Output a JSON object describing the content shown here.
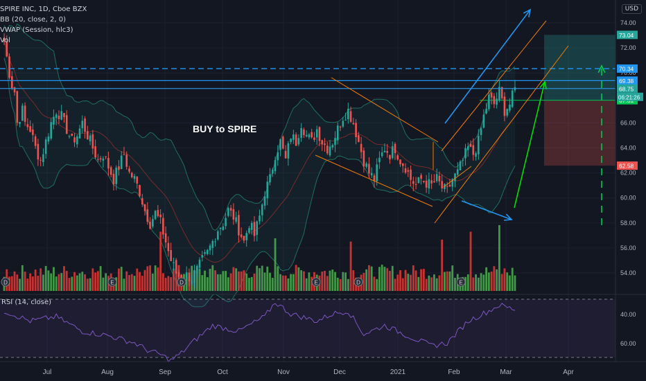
{
  "legend": {
    "symbol": "SPIRE INC, 1D, Cboe BZX",
    "bb": "BB (20, close, 2, 0)",
    "vwap": "VWAP (Session, hlc3)",
    "vol": "Vol"
  },
  "rsi_label": "RSI (14, close)",
  "currency": "USD",
  "annotation": "BUY to SPIRE",
  "countdown": "06:21:26",
  "colors": {
    "background": "#131722",
    "up": "#26a69a",
    "down": "#ef5350",
    "vol_up": "#4caf50",
    "vol_down": "#e53935",
    "bb": "#1e6f60",
    "basis": "#7a2a2a",
    "rsi": "#7e57c2",
    "blue_line": "#2196f3",
    "orange_channel": "#f57c00",
    "green_arrow": "#00e000"
  },
  "chart_data": {
    "type": "candlestick",
    "price_axis": {
      "min": 53,
      "max": 75,
      "ticks": [
        54,
        56,
        58,
        60,
        62,
        64,
        66,
        68,
        70,
        72,
        74
      ],
      "labels": [
        "54.00",
        "56.00",
        "58.00",
        "60.00",
        "62.00",
        "64.00",
        "66.00",
        "68.00",
        "70.00",
        "72.00",
        "74.00"
      ]
    },
    "time_axis": {
      "labels": [
        "Jul",
        "Aug",
        "Sep",
        "Oct",
        "Nov",
        "Dec",
        "2021",
        "Feb",
        "Mar",
        "Apr"
      ]
    },
    "price_labels": [
      {
        "value": 73.04,
        "text": "73.04",
        "color": "#26a69a"
      },
      {
        "value": 70.34,
        "text": "70.34",
        "color": "#2196f3"
      },
      {
        "value": 69.38,
        "text": "69.38",
        "color": "#2196f3"
      },
      {
        "value": 68.75,
        "text": "68.75",
        "color": "#26a69a"
      },
      {
        "value": 67.81,
        "text": "67.81",
        "color": "#00c853"
      },
      {
        "value": 62.58,
        "text": "62.58",
        "color": "#ef5350"
      }
    ],
    "horizontal_levels": [
      70.34,
      69.38,
      68.75
    ],
    "position_tool": {
      "target": 73.04,
      "entry": 67.81,
      "stop": 62.58
    },
    "close_path": [
      [
        0,
        72.5
      ],
      [
        2,
        70
      ],
      [
        3,
        69
      ],
      [
        4,
        68.5
      ],
      [
        5,
        66
      ],
      [
        7,
        67
      ],
      [
        8,
        66
      ],
      [
        10,
        65.5
      ],
      [
        12,
        64
      ],
      [
        14,
        63
      ],
      [
        16,
        64.5
      ],
      [
        18,
        66
      ],
      [
        20,
        67
      ],
      [
        22,
        66.5
      ],
      [
        24,
        65.5
      ],
      [
        26,
        64.5
      ],
      [
        28,
        65
      ],
      [
        30,
        66
      ],
      [
        32,
        65
      ],
      [
        34,
        64
      ],
      [
        36,
        63
      ],
      [
        38,
        63.5
      ],
      [
        40,
        62.5
      ],
      [
        42,
        61.5
      ],
      [
        44,
        62.5
      ],
      [
        46,
        63.5
      ],
      [
        48,
        62
      ],
      [
        50,
        61.5
      ],
      [
        52,
        60.5
      ],
      [
        54,
        59
      ],
      [
        56,
        58
      ],
      [
        58,
        58.8
      ],
      [
        60,
        58
      ],
      [
        62,
        56.5
      ],
      [
        64,
        55
      ],
      [
        66,
        54
      ],
      [
        68,
        53.5
      ],
      [
        70,
        53.8
      ],
      [
        72,
        53.6
      ],
      [
        74,
        54.2
      ],
      [
        76,
        55
      ],
      [
        78,
        55.6
      ],
      [
        80,
        56.5
      ],
      [
        82,
        57.5
      ],
      [
        84,
        58
      ],
      [
        86,
        59
      ],
      [
        88,
        58.5
      ],
      [
        90,
        57.5
      ],
      [
        92,
        56.5
      ],
      [
        94,
        58
      ],
      [
        96,
        57
      ],
      [
        98,
        58.5
      ],
      [
        100,
        60.5
      ],
      [
        102,
        61.5
      ],
      [
        104,
        63.5
      ],
      [
        106,
        64.5
      ],
      [
        108,
        63
      ],
      [
        110,
        65
      ],
      [
        112,
        64.5
      ],
      [
        114,
        66
      ],
      [
        116,
        65
      ],
      [
        118,
        64.5
      ],
      [
        120,
        65.5
      ],
      [
        122,
        64.5
      ],
      [
        124,
        64
      ],
      [
        126,
        64.5
      ],
      [
        128,
        65.5
      ],
      [
        130,
        66.5
      ],
      [
        132,
        67
      ],
      [
        134,
        66
      ],
      [
        136,
        64.5
      ],
      [
        138,
        63
      ],
      [
        140,
        62
      ],
      [
        142,
        61.5
      ],
      [
        144,
        63
      ],
      [
        146,
        64
      ],
      [
        148,
        63.5
      ],
      [
        150,
        64
      ],
      [
        152,
        63
      ],
      [
        154,
        62.5
      ],
      [
        156,
        61.5
      ],
      [
        158,
        61
      ],
      [
        160,
        61.5
      ],
      [
        162,
        61.2
      ],
      [
        164,
        61
      ],
      [
        166,
        61.5
      ],
      [
        168,
        60.8
      ],
      [
        170,
        60.5
      ],
      [
        172,
        61.5
      ],
      [
        174,
        62
      ],
      [
        176,
        63
      ],
      [
        178,
        64
      ],
      [
        180,
        63.5
      ],
      [
        182,
        64.5
      ],
      [
        184,
        66.5
      ],
      [
        186,
        68
      ],
      [
        188,
        67.5
      ],
      [
        190,
        68.5
      ],
      [
        192,
        67
      ],
      [
        194,
        67.5
      ],
      [
        196,
        68.7
      ]
    ],
    "volume": {
      "units": "relative",
      "max": 100,
      "spikes": {
        "60": 90,
        "104": 80,
        "133": 75,
        "168": 78,
        "179": 90,
        "190": 100
      }
    },
    "rsi": {
      "levels": [
        40,
        60
      ],
      "ticks": [
        "60.00",
        "40.00"
      ],
      "path": [
        [
          0,
          62
        ],
        [
          10,
          55
        ],
        [
          20,
          58
        ],
        [
          30,
          48
        ],
        [
          40,
          45
        ],
        [
          50,
          40
        ],
        [
          55,
          35
        ],
        [
          60,
          32
        ],
        [
          64,
          28
        ],
        [
          68,
          33
        ],
        [
          72,
          40
        ],
        [
          80,
          52
        ],
        [
          90,
          48
        ],
        [
          100,
          58
        ],
        [
          104,
          68
        ],
        [
          110,
          60
        ],
        [
          120,
          55
        ],
        [
          126,
          60
        ],
        [
          132,
          62
        ],
        [
          138,
          46
        ],
        [
          146,
          52
        ],
        [
          156,
          44
        ],
        [
          164,
          38
        ],
        [
          170,
          40
        ],
        [
          178,
          55
        ],
        [
          186,
          62
        ],
        [
          190,
          66
        ],
        [
          196,
          63
        ]
      ]
    }
  }
}
